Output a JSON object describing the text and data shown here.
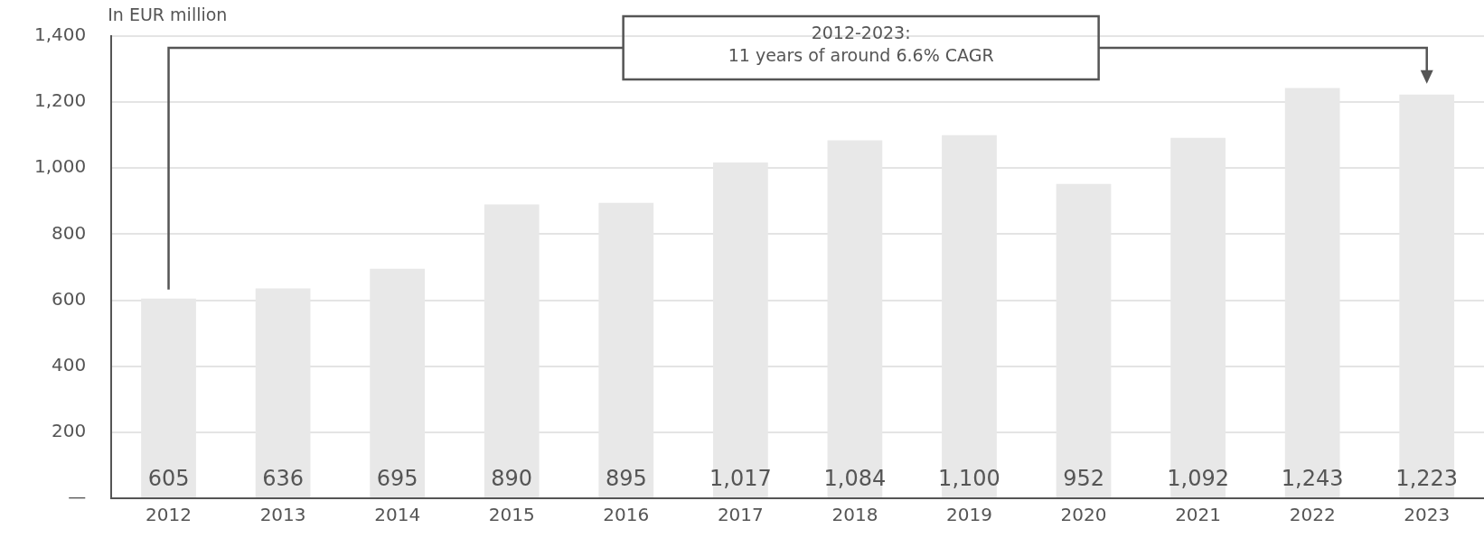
{
  "chart_data": {
    "type": "bar",
    "ylabel": "In EUR million",
    "annotations": [
      "2012-2023:\n11 years of around 6.6% CAGR"
    ],
    "categories": [
      "2012",
      "2013",
      "2014",
      "2015",
      "2016",
      "2017",
      "2018",
      "2019",
      "2020",
      "2021",
      "2022",
      "2023"
    ],
    "values": [
      605,
      636,
      695,
      890,
      895,
      1017,
      1084,
      1100,
      952,
      1092,
      1243,
      1223
    ],
    "value_labels": [
      "605",
      "636",
      "695",
      "890",
      "895",
      "1,017",
      "1,084",
      "1,100",
      "952",
      "1,092",
      "1,243",
      "1,223"
    ],
    "color": "#e8e8e8",
    "ylim": [
      0,
      1400
    ],
    "yticks": [
      {
        "value": 0,
        "label": "—"
      },
      {
        "value": 200,
        "label": "200"
      },
      {
        "value": 400,
        "label": "400"
      },
      {
        "value": 600,
        "label": "600"
      },
      {
        "value": 800,
        "label": "800"
      },
      {
        "value": 1000,
        "label": "1,000"
      },
      {
        "value": 1200,
        "label": "1,200"
      },
      {
        "value": 1400,
        "label": "1,400"
      }
    ],
    "grid": "y",
    "legend": false
  }
}
